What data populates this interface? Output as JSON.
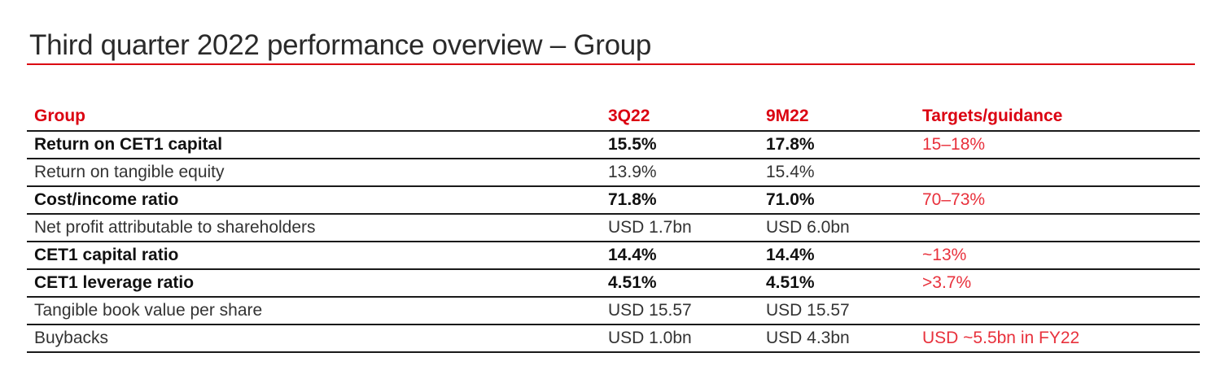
{
  "title": "Third quarter 2022 performance overview – Group",
  "colors": {
    "accent": "#db0011",
    "target_text": "#e8313c"
  },
  "table": {
    "headers": [
      "Group",
      "3Q22",
      "9M22",
      "Targets/guidance"
    ],
    "rows": [
      {
        "label": "Return on CET1 capital",
        "q3": "15.5%",
        "m9": "17.8%",
        "target": "15–18%",
        "emphasis": true
      },
      {
        "label": "Return on tangible equity",
        "q3": "13.9%",
        "m9": "15.4%",
        "target": "",
        "emphasis": false
      },
      {
        "label": "Cost/income ratio",
        "q3": "71.8%",
        "m9": "71.0%",
        "target": "70–73%",
        "emphasis": true
      },
      {
        "label": "Net profit attributable to shareholders",
        "q3": "USD 1.7bn",
        "m9": "USD 6.0bn",
        "target": "",
        "emphasis": false
      },
      {
        "label": "CET1 capital ratio",
        "q3": "14.4%",
        "m9": "14.4%",
        "target": "~13%",
        "emphasis": true
      },
      {
        "label": "CET1 leverage ratio",
        "q3": "4.51%",
        "m9": "4.51%",
        "target": ">3.7%",
        "emphasis": true
      },
      {
        "label": "Tangible book value per share",
        "q3": "USD 15.57",
        "m9": "USD 15.57",
        "target": "",
        "emphasis": false
      },
      {
        "label": "Buybacks",
        "q3": "USD 1.0bn",
        "m9": "USD 4.3bn",
        "target": "USD ~5.5bn in FY22",
        "emphasis": false
      }
    ]
  }
}
